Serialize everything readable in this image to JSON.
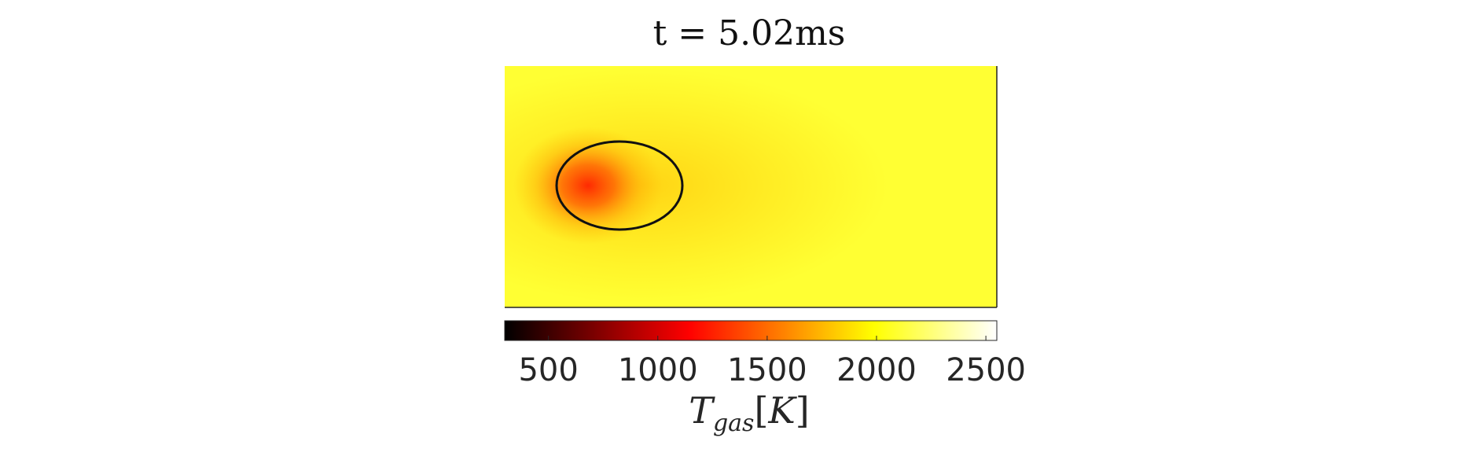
{
  "chart_data": {
    "type": "heatmap",
    "title": "t = 5.02ms",
    "colorbar": {
      "label_main": "T",
      "label_sub": "gas",
      "label_unit": "K",
      "label_open": "[",
      "label_close": "]",
      "range": [
        300,
        2550
      ],
      "colormap": "hot",
      "ticks": [
        500,
        1000,
        1500,
        2000,
        2500
      ],
      "tick_labels": [
        "500",
        "1000",
        "1500",
        "2000",
        "2500"
      ],
      "orientation": "horizontal",
      "placement": "bottom"
    },
    "field": {
      "background_value": 2100,
      "hotspot_value": 1250,
      "hotspot_location": "left side, inside droplet outline"
    },
    "annotations": [
      {
        "kind": "droplet-outline",
        "shape": "ellipse",
        "color": "#111111"
      }
    ],
    "axes_visible": false,
    "grid": false
  }
}
